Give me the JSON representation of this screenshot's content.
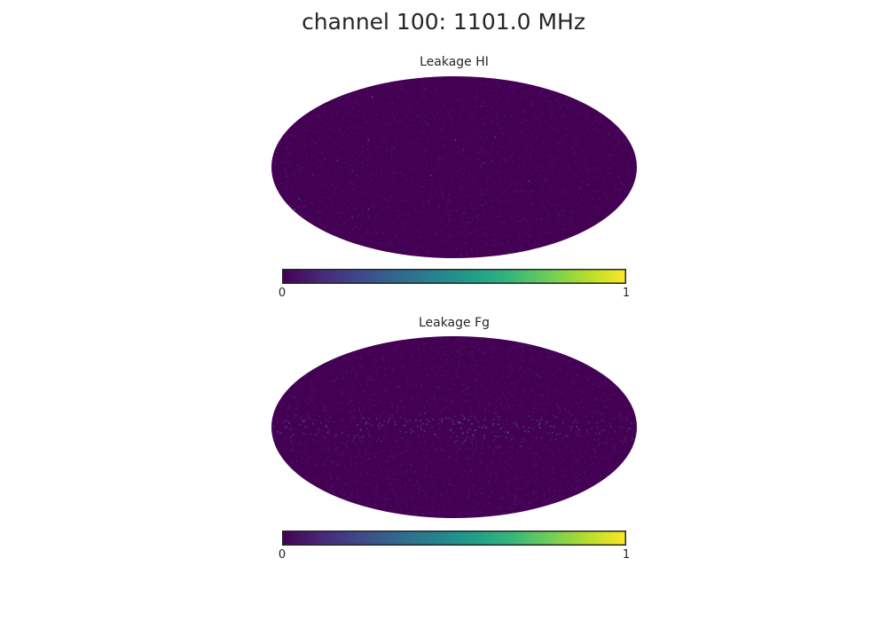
{
  "figure": {
    "suptitle": "channel 100: 1101.0 MHz"
  },
  "colors": {
    "map_background": "#440154",
    "colormap": "viridis",
    "viridis_stops": [
      "#440154",
      "#482878",
      "#3e4989",
      "#31688e",
      "#26828e",
      "#1f9e89",
      "#35b779",
      "#6ece58",
      "#b5de2b",
      "#fde725"
    ]
  },
  "chart_data": [
    {
      "type": "heatmap",
      "projection": "mollweide",
      "title": "Leakage HI",
      "colorbar": {
        "vmin": 0,
        "vmax": 1,
        "tick_labels": [
          "0",
          "1"
        ]
      },
      "pattern": "uniform low-level noise across full sky",
      "typical_value": 0.02,
      "peak_value": 0.3
    },
    {
      "type": "heatmap",
      "projection": "mollweide",
      "title": "Leakage Fg",
      "colorbar": {
        "vmin": 0,
        "vmax": 1,
        "tick_labels": [
          "0",
          "1"
        ]
      },
      "pattern": "low background with enhanced emission along galactic plane",
      "typical_value": 0.02,
      "peak_value": 0.35
    }
  ]
}
